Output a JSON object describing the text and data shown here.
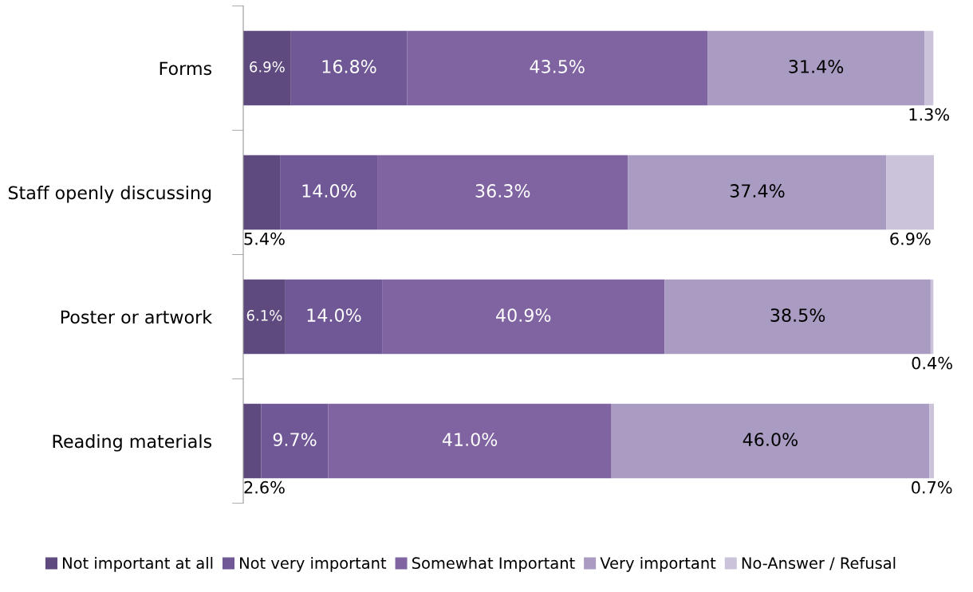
{
  "chart_data": {
    "type": "bar",
    "orientation": "horizontal",
    "stacked": true,
    "categories": [
      "Forms",
      "Staff openly discussing",
      "Poster or artwork",
      "Reading materials"
    ],
    "series": [
      {
        "name": "Not important at all",
        "color": "#5e4a7e",
        "values": [
          6.9,
          5.4,
          6.1,
          2.6
        ],
        "value_labels": [
          "6.9%",
          "5.4%",
          "6.1%",
          "2.6%"
        ]
      },
      {
        "name": "Not very important",
        "color": "#6f5895",
        "values": [
          16.8,
          14.0,
          14.0,
          9.7
        ],
        "value_labels": [
          "16.8%",
          "14.0%",
          "14.0%",
          "9.7%"
        ]
      },
      {
        "name": "Somewhat Important",
        "color": "#8064a2",
        "values": [
          43.5,
          36.3,
          40.9,
          41.0
        ],
        "value_labels": [
          "43.5%",
          "36.3%",
          "40.9%",
          "41.0%"
        ]
      },
      {
        "name": "Very important",
        "color": "#a99bc1",
        "values": [
          31.4,
          37.4,
          38.5,
          46.0
        ],
        "value_labels": [
          "31.4%",
          "37.4%",
          "38.5%",
          "46.0%"
        ]
      },
      {
        "name": "No-Answer / Refusal",
        "color": "#cbc3da",
        "values": [
          1.3,
          6.9,
          0.4,
          0.7
        ],
        "value_labels": [
          "1.3%",
          "6.9%",
          "0.4%",
          "0.7%"
        ]
      }
    ],
    "legend": "bottom",
    "grid": false
  }
}
